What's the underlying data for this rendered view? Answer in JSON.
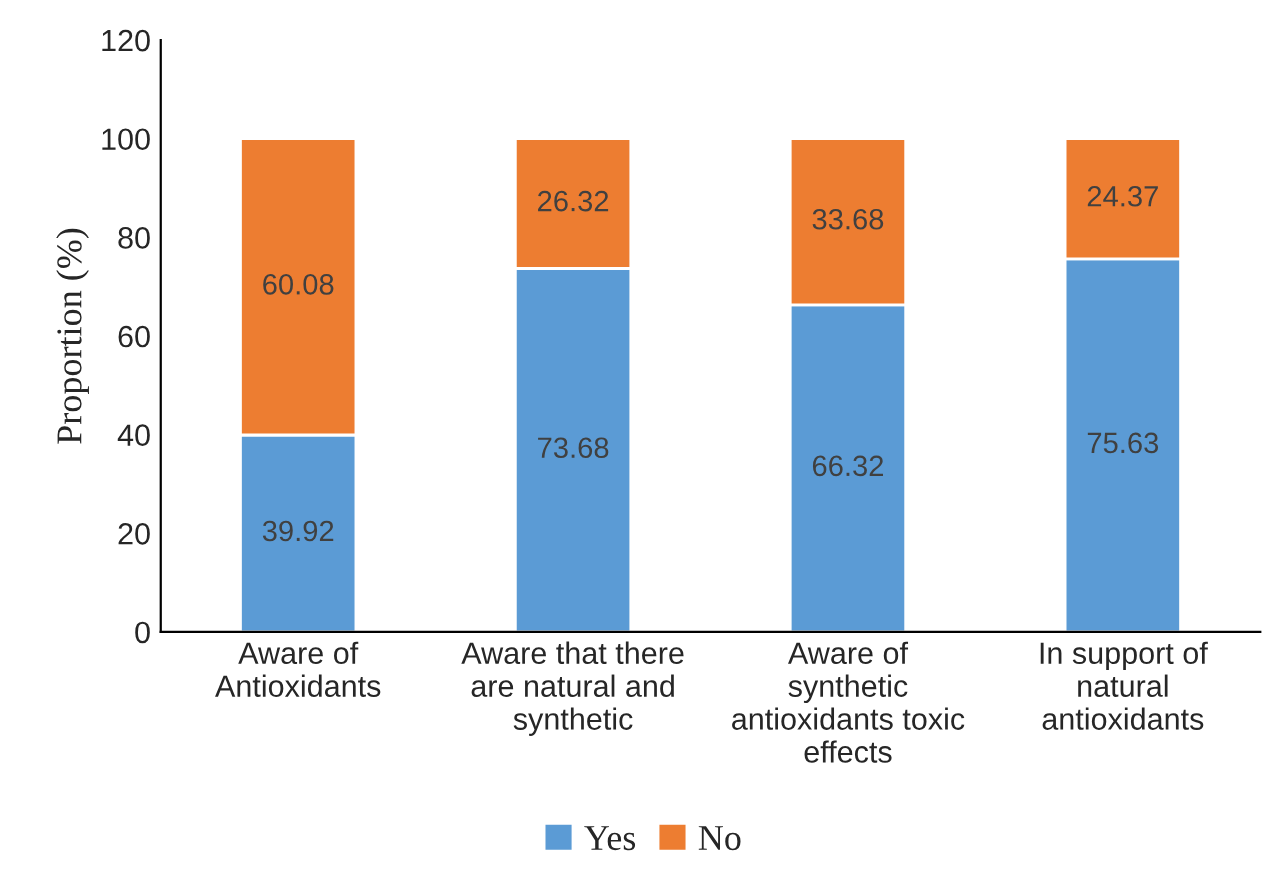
{
  "chart_data": {
    "type": "bar",
    "stacked": true,
    "ylabel": "Proportion (%)",
    "categories": [
      "Aware of\nAntioxidants",
      "Aware that there\nare natural and\nsynthetic",
      "Aware of\nsynthetic\nantioxidants toxic\neffects",
      "In support of\nnatural\nantioxidants"
    ],
    "series": [
      {
        "name": "Yes",
        "color": "#5b9bd5",
        "values": [
          39.92,
          73.68,
          66.32,
          75.63
        ]
      },
      {
        "name": "No",
        "color": "#ed7d31",
        "values": [
          60.08,
          26.32,
          33.68,
          24.37
        ]
      }
    ],
    "ylim": [
      0,
      120
    ],
    "yticks": [
      0,
      20,
      40,
      60,
      80,
      100,
      120
    ],
    "grid": false,
    "legend": "bottom",
    "data_labels": true
  }
}
